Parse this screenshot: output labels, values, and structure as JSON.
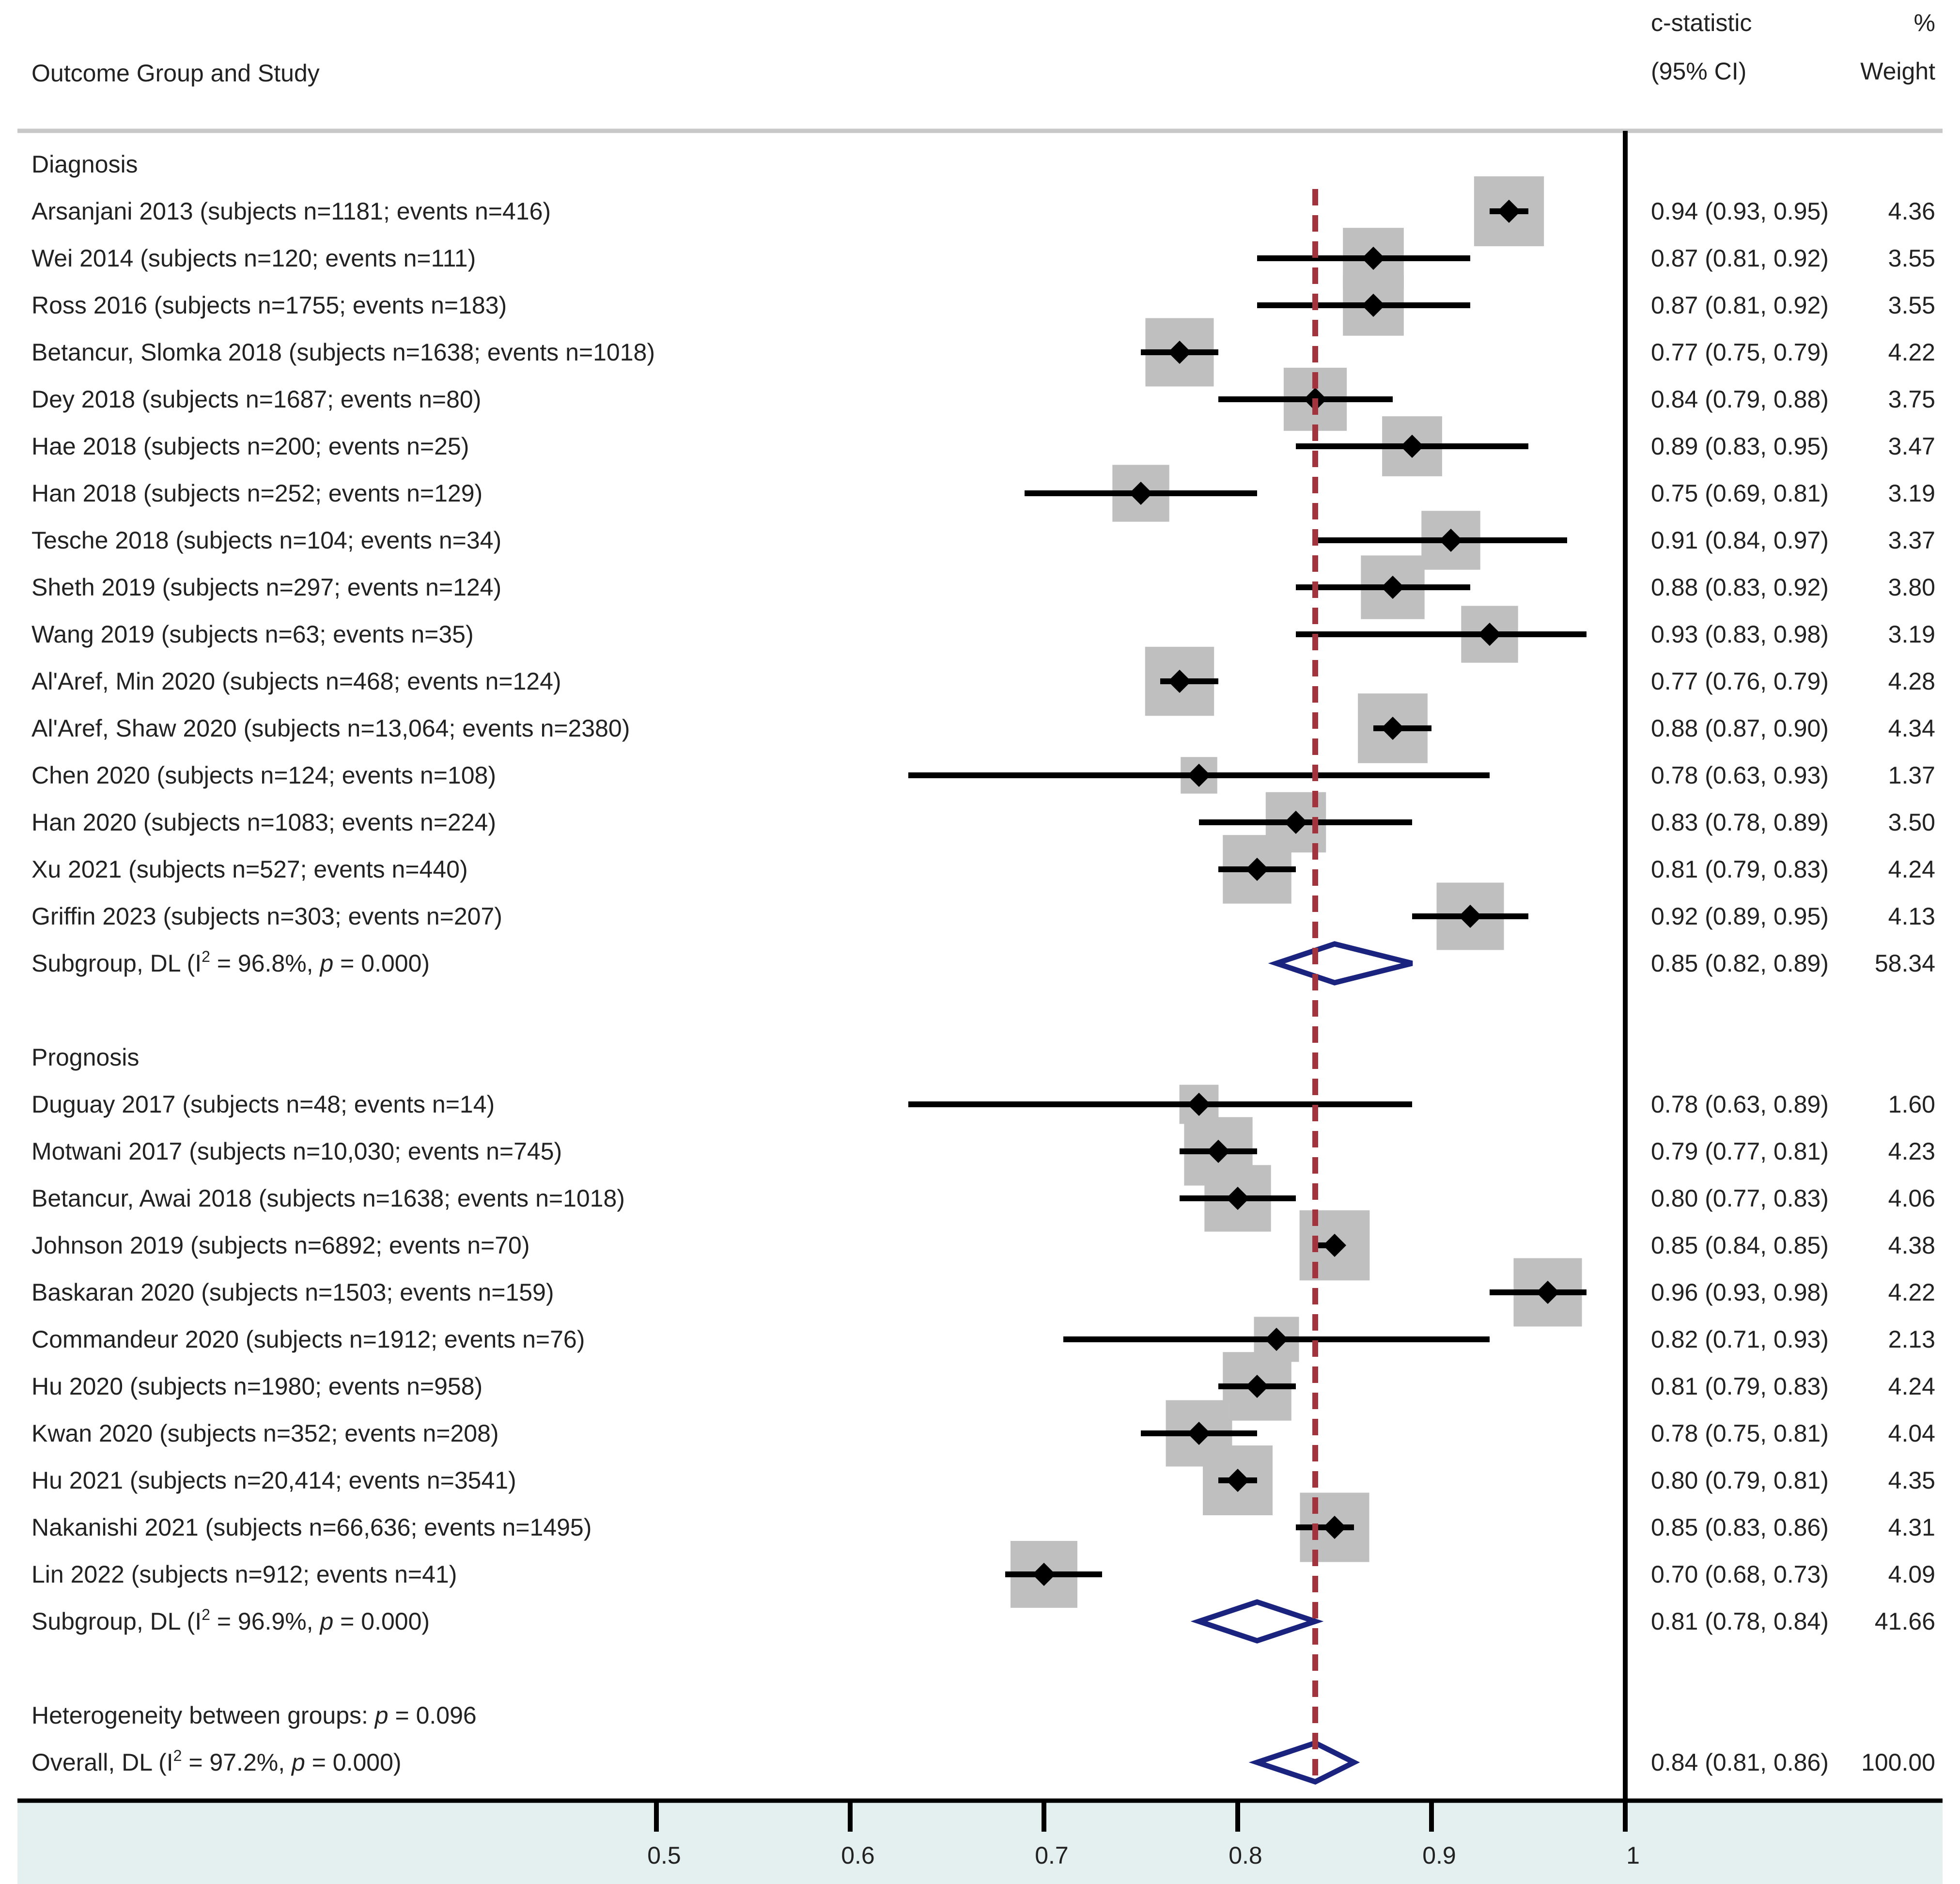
{
  "chart_data": {
    "type": "forest",
    "header": {
      "left": "Outcome Group and Study",
      "stat_line1": "c-statistic",
      "stat_line2": "(95% CI)",
      "weight_line1": "%",
      "weight_line2": "Weight"
    },
    "null_line": 1,
    "overall_line": 0.84,
    "xaxis": {
      "ticks": [
        {
          "value": 0.5,
          "label": "0.5"
        },
        {
          "value": 0.6,
          "label": "0.6"
        },
        {
          "value": 0.7,
          "label": "0.7"
        },
        {
          "value": 0.8,
          "label": "0.8"
        },
        {
          "value": 0.9,
          "label": "0.9"
        },
        {
          "value": 1,
          "label": "1"
        }
      ]
    },
    "groups": [
      {
        "name": "Diagnosis",
        "studies": [
          {
            "label": "Arsanjani 2013 (subjects n=1181; events n=416)",
            "est": 0.94,
            "lo": 0.93,
            "hi": 0.95,
            "ci_text": "0.94 (0.93, 0.95)",
            "weight": 4.36,
            "weight_text": "4.36"
          },
          {
            "label": "Wei 2014 (subjects n=120; events n=111)",
            "est": 0.87,
            "lo": 0.81,
            "hi": 0.92,
            "ci_text": "0.87 (0.81, 0.92)",
            "weight": 3.55,
            "weight_text": "3.55"
          },
          {
            "label": "Ross 2016 (subjects n=1755; events n=183)",
            "est": 0.87,
            "lo": 0.81,
            "hi": 0.92,
            "ci_text": "0.87 (0.81, 0.92)",
            "weight": 3.55,
            "weight_text": "3.55"
          },
          {
            "label": "Betancur, Slomka 2018 (subjects n=1638; events n=1018)",
            "est": 0.77,
            "lo": 0.75,
            "hi": 0.79,
            "ci_text": "0.77 (0.75, 0.79)",
            "weight": 4.22,
            "weight_text": "4.22"
          },
          {
            "label": "Dey 2018 (subjects n=1687; events n=80)",
            "est": 0.84,
            "lo": 0.79,
            "hi": 0.88,
            "ci_text": "0.84 (0.79, 0.88)",
            "weight": 3.75,
            "weight_text": "3.75"
          },
          {
            "label": "Hae 2018 (subjects n=200; events n=25)",
            "est": 0.89,
            "lo": 0.83,
            "hi": 0.95,
            "ci_text": "0.89 (0.83, 0.95)",
            "weight": 3.47,
            "weight_text": "3.47"
          },
          {
            "label": "Han 2018 (subjects n=252; events n=129)",
            "est": 0.75,
            "lo": 0.69,
            "hi": 0.81,
            "ci_text": "0.75 (0.69, 0.81)",
            "weight": 3.19,
            "weight_text": "3.19"
          },
          {
            "label": "Tesche 2018 (subjects n=104; events n=34)",
            "est": 0.91,
            "lo": 0.84,
            "hi": 0.97,
            "ci_text": "0.91 (0.84, 0.97)",
            "weight": 3.37,
            "weight_text": "3.37"
          },
          {
            "label": "Sheth 2019 (subjects n=297; events n=124)",
            "est": 0.88,
            "lo": 0.83,
            "hi": 0.92,
            "ci_text": "0.88 (0.83, 0.92)",
            "weight": 3.8,
            "weight_text": "3.80"
          },
          {
            "label": "Wang 2019 (subjects n=63; events n=35)",
            "est": 0.93,
            "lo": 0.83,
            "hi": 0.98,
            "ci_text": "0.93 (0.83, 0.98)",
            "weight": 3.19,
            "weight_text": "3.19"
          },
          {
            "label": "Al'Aref, Min 2020 (subjects n=468; events n=124)",
            "est": 0.77,
            "lo": 0.76,
            "hi": 0.79,
            "ci_text": "0.77 (0.76, 0.79)",
            "weight": 4.28,
            "weight_text": "4.28"
          },
          {
            "label": "Al'Aref, Shaw 2020 (subjects n=13,064; events n=2380)",
            "est": 0.88,
            "lo": 0.87,
            "hi": 0.9,
            "ci_text": "0.88 (0.87, 0.90)",
            "weight": 4.34,
            "weight_text": "4.34"
          },
          {
            "label": "Chen 2020 (subjects n=124; events n=108)",
            "est": 0.78,
            "lo": 0.63,
            "hi": 0.93,
            "ci_text": "0.78 (0.63, 0.93)",
            "weight": 1.37,
            "weight_text": "1.37"
          },
          {
            "label": "Han 2020 (subjects n=1083; events n=224)",
            "est": 0.83,
            "lo": 0.78,
            "hi": 0.89,
            "ci_text": "0.83 (0.78, 0.89)",
            "weight": 3.5,
            "weight_text": "3.50"
          },
          {
            "label": "Xu 2021 (subjects n=527; events n=440)",
            "est": 0.81,
            "lo": 0.79,
            "hi": 0.83,
            "ci_text": "0.81 (0.79, 0.83)",
            "weight": 4.24,
            "weight_text": "4.24"
          },
          {
            "label": "Griffin 2023 (subjects n=303; events n=207)",
            "est": 0.92,
            "lo": 0.89,
            "hi": 0.95,
            "ci_text": "0.92 (0.89, 0.95)",
            "weight": 4.13,
            "weight_text": "4.13"
          }
        ],
        "subgroup": {
          "label_pre": "Subgroup, DL (I",
          "sup": "2",
          "label_mid": " = 96.8%, ",
          "p_letter": "p",
          "label_post": " = 0.000)",
          "est": 0.85,
          "lo": 0.82,
          "hi": 0.89,
          "ci_text": "0.85 (0.82, 0.89)",
          "weight_text": "58.34"
        }
      },
      {
        "name": "Prognosis",
        "studies": [
          {
            "label": "Duguay 2017 (subjects n=48; events n=14)",
            "est": 0.78,
            "lo": 0.63,
            "hi": 0.89,
            "ci_text": "0.78 (0.63, 0.89)",
            "weight": 1.6,
            "weight_text": "1.60"
          },
          {
            "label": "Motwani 2017 (subjects n=10,030; events n=745)",
            "est": 0.79,
            "lo": 0.77,
            "hi": 0.81,
            "ci_text": "0.79 (0.77, 0.81)",
            "weight": 4.23,
            "weight_text": "4.23"
          },
          {
            "label": "Betancur, Awai 2018 (subjects n=1638; events n=1018)",
            "est": 0.8,
            "lo": 0.77,
            "hi": 0.83,
            "ci_text": "0.80 (0.77, 0.83)",
            "weight": 4.06,
            "weight_text": "4.06"
          },
          {
            "label": "Johnson 2019 (subjects n=6892; events n=70)",
            "est": 0.85,
            "lo": 0.84,
            "hi": 0.85,
            "ci_text": "0.85 (0.84, 0.85)",
            "weight": 4.38,
            "weight_text": "4.38"
          },
          {
            "label": "Baskaran 2020 (subjects n=1503; events n=159)",
            "est": 0.96,
            "lo": 0.93,
            "hi": 0.98,
            "ci_text": "0.96 (0.93, 0.98)",
            "weight": 4.22,
            "weight_text": "4.22"
          },
          {
            "label": "Commandeur 2020 (subjects n=1912; events n=76)",
            "est": 0.82,
            "lo": 0.71,
            "hi": 0.93,
            "ci_text": "0.82 (0.71, 0.93)",
            "weight": 2.13,
            "weight_text": "2.13"
          },
          {
            "label": "Hu 2020 (subjects n=1980; events n=958)",
            "est": 0.81,
            "lo": 0.79,
            "hi": 0.83,
            "ci_text": "0.81 (0.79, 0.83)",
            "weight": 4.24,
            "weight_text": "4.24"
          },
          {
            "label": "Kwan 2020 (subjects n=352; events n=208)",
            "est": 0.78,
            "lo": 0.75,
            "hi": 0.81,
            "ci_text": "0.78 (0.75, 0.81)",
            "weight": 4.04,
            "weight_text": "4.04"
          },
          {
            "label": "Hu 2021 (subjects n=20,414; events n=3541)",
            "est": 0.8,
            "lo": 0.79,
            "hi": 0.81,
            "ci_text": "0.80 (0.79, 0.81)",
            "weight": 4.35,
            "weight_text": "4.35"
          },
          {
            "label": "Nakanishi 2021 (subjects n=66,636; events n=1495)",
            "est": 0.85,
            "lo": 0.83,
            "hi": 0.86,
            "ci_text": "0.85 (0.83, 0.86)",
            "weight": 4.31,
            "weight_text": "4.31"
          },
          {
            "label": "Lin 2022 (subjects n=912; events n=41)",
            "est": 0.7,
            "lo": 0.68,
            "hi": 0.73,
            "ci_text": "0.70 (0.68, 0.73)",
            "weight": 4.09,
            "weight_text": "4.09"
          }
        ],
        "subgroup": {
          "label_pre": "Subgroup, DL (I",
          "sup": "2",
          "label_mid": " = 96.9%, ",
          "p_letter": "p",
          "label_post": " = 0.000)",
          "est": 0.81,
          "lo": 0.78,
          "hi": 0.84,
          "ci_text": "0.81 (0.78, 0.84)",
          "weight_text": "41.66"
        }
      }
    ],
    "heterogeneity": {
      "label_pre": "Heterogeneity between groups: ",
      "p_letter": "p",
      "label_post": " = 0.096"
    },
    "overall": {
      "label_pre": "Overall, DL (I",
      "sup": "2",
      "label_mid": " = 97.2%, ",
      "p_letter": "p",
      "label_post": " = 0.000)",
      "est": 0.84,
      "lo": 0.81,
      "hi": 0.86,
      "ci_text": "0.84 (0.81, 0.86)",
      "weight_text": "100.00"
    },
    "colors": {
      "ci_line": "#000000",
      "marker": "#000000",
      "weight_box": "#bfbfbf",
      "diamond": "#1a237e",
      "overall_line": "#a3333d",
      "rule": "#c8c8c8",
      "axis_band": "#e4f0f0"
    }
  }
}
